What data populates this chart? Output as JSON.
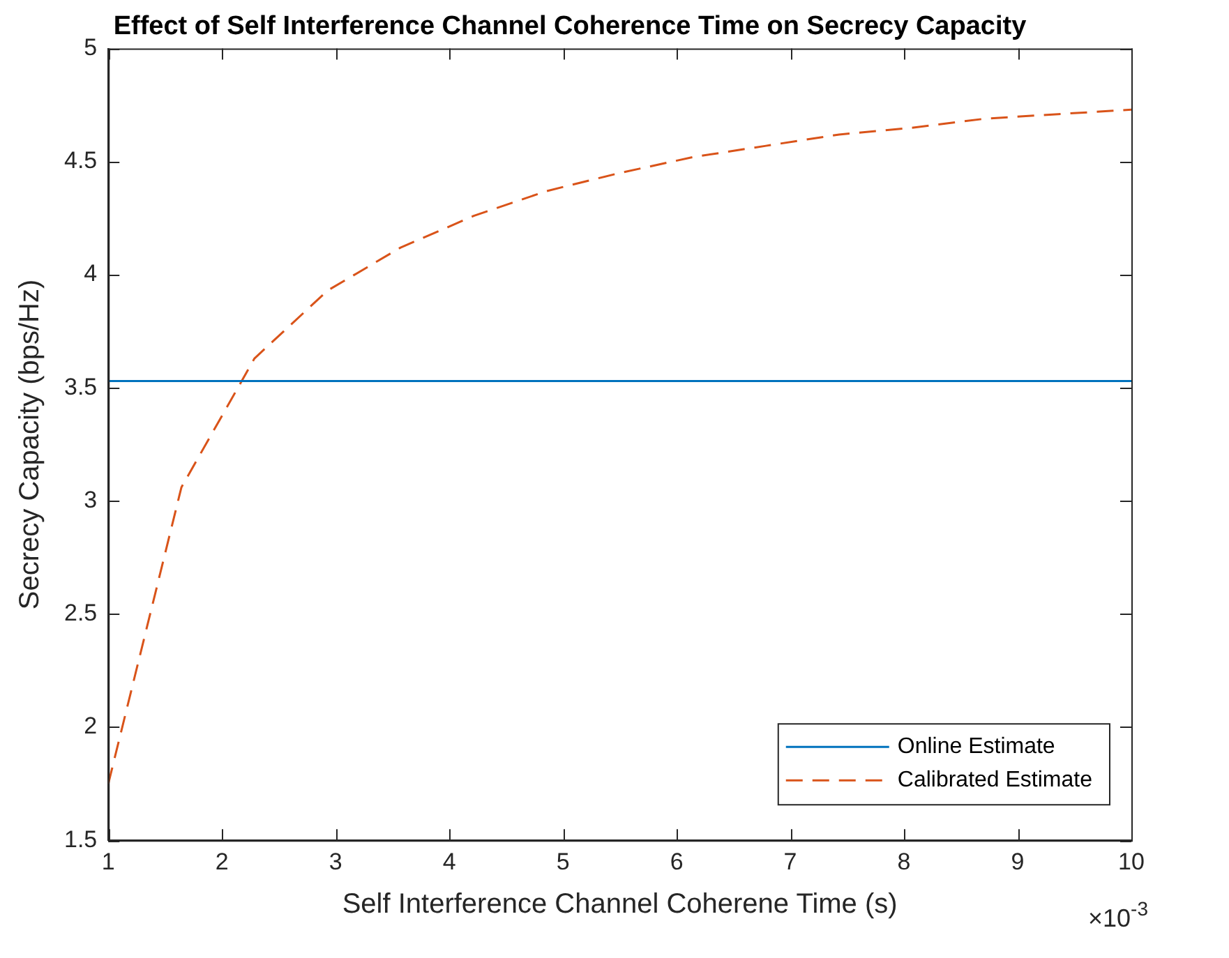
{
  "chart_data": {
    "type": "line",
    "title": "Effect of Self Interference Channel Coherence Time on Secrecy Capacity",
    "xlabel": "Self Interference Channel Coherene Time (s)",
    "ylabel": "Secrecy Capacity (bps/Hz)",
    "series": [
      {
        "name": "Online Estimate",
        "color": "#0072bd",
        "line_style": "solid",
        "x": [
          1,
          10
        ],
        "values": [
          3.53,
          3.53
        ]
      },
      {
        "name": "Calibrated Estimate",
        "color": "#d95319",
        "line_style": "dashed",
        "x": [
          1,
          1.643,
          2.286,
          2.929,
          3.571,
          4.214,
          4.857,
          5.5,
          6.143,
          6.786,
          7.429,
          8.071,
          8.714,
          9.357,
          10
        ],
        "values": [
          1.75,
          3.06,
          3.63,
          3.93,
          4.12,
          4.26,
          4.37,
          4.45,
          4.52,
          4.57,
          4.62,
          4.65,
          4.69,
          4.71,
          4.73
        ]
      }
    ],
    "xlim": [
      1,
      10
    ],
    "xticks": [
      1,
      2,
      3,
      4,
      5,
      6,
      7,
      8,
      9,
      10
    ],
    "ylim": [
      1.5,
      5
    ],
    "yticks": [
      1.5,
      2,
      2.5,
      3,
      3.5,
      4,
      4.5,
      5
    ],
    "annotations": [
      "×10$^{-3}$"
    ],
    "legend": "bottom right",
    "grid": false,
    "marker": "none"
  }
}
